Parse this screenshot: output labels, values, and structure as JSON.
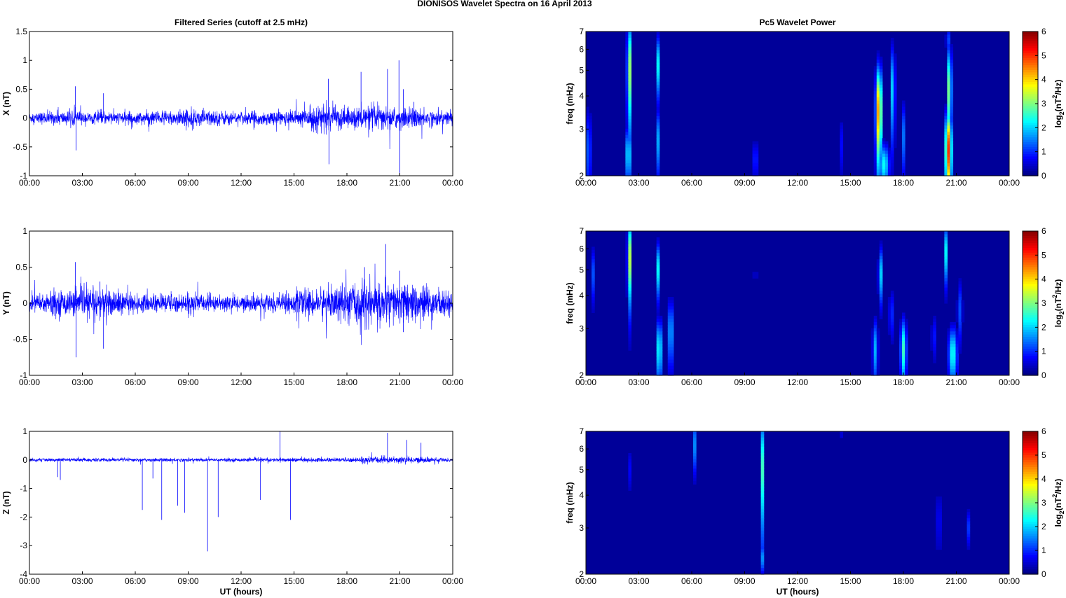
{
  "figure_title": "DIONISOS Wavelet Spectra on 16 April     2013",
  "chart_data": [
    {
      "type": "line",
      "panel": "X",
      "title": "Filtered Series (cutoff at 2.5 mHz)",
      "ylabel": "X (nT)",
      "xlabel": "",
      "xticks": [
        "00:00",
        "03:00",
        "06:00",
        "09:00",
        "12:00",
        "15:00",
        "18:00",
        "21:00",
        "00:00"
      ],
      "yticks": [
        -1,
        -0.5,
        0,
        0.5,
        1,
        1.5
      ],
      "ylim": [
        -1,
        1.5
      ],
      "xlim_hours": [
        0,
        24
      ],
      "noise_amplitude_by_hour": [
        [
          0,
          0.06
        ],
        [
          2,
          0.08
        ],
        [
          3,
          0.07
        ],
        [
          6,
          0.07
        ],
        [
          9,
          0.1
        ],
        [
          12,
          0.07
        ],
        [
          15,
          0.09
        ],
        [
          16.5,
          0.15
        ],
        [
          18,
          0.12
        ],
        [
          20,
          0.14
        ],
        [
          21,
          0.12
        ],
        [
          24,
          0.08
        ]
      ],
      "spikes": [
        [
          2.6,
          0.55
        ],
        [
          2.65,
          -0.56
        ],
        [
          4.2,
          0.43
        ],
        [
          16.95,
          0.68
        ],
        [
          16.98,
          -0.8
        ],
        [
          18.8,
          0.8
        ],
        [
          20.3,
          0.85
        ],
        [
          20.95,
          1.0
        ],
        [
          21.0,
          -0.95
        ],
        [
          21.2,
          0.5
        ],
        [
          21.8,
          0.28
        ]
      ],
      "line_color": "#0000ff"
    },
    {
      "type": "heatmap",
      "panel": "X",
      "title": "Pc5 Wavelet Power",
      "ylabel": "freq (mHz)",
      "xlabel": "",
      "colorbar_label": "log2(nT2/Hz)",
      "xticks": [
        "00:00",
        "03:00",
        "06:00",
        "09:00",
        "12:00",
        "15:00",
        "18:00",
        "21:00",
        "00:00"
      ],
      "yticks": [
        2,
        3,
        4,
        5,
        6,
        7
      ],
      "ylim": [
        2,
        7
      ],
      "clim": [
        0,
        6
      ],
      "colorbar_ticks": [
        0,
        1,
        2,
        3,
        4,
        5,
        6
      ],
      "colormap": "jet",
      "blobs": [
        {
          "t": 0.15,
          "f": 2.5,
          "w": 0.1,
          "h": 1.0,
          "a": 2.0
        },
        {
          "t": 2.45,
          "f": 5.0,
          "w": 0.12,
          "h": 2.4,
          "a": 3.3
        },
        {
          "t": 2.4,
          "f": 2.4,
          "w": 0.15,
          "h": 0.6,
          "a": 2.4
        },
        {
          "t": 4.1,
          "f": 5.2,
          "w": 0.1,
          "h": 1.4,
          "a": 2.3
        },
        {
          "t": 4.1,
          "f": 2.7,
          "w": 0.1,
          "h": 0.8,
          "a": 1.8
        },
        {
          "t": 9.6,
          "f": 2.3,
          "w": 0.18,
          "h": 0.4,
          "a": 1.0
        },
        {
          "t": 14.5,
          "f": 2.6,
          "w": 0.1,
          "h": 0.7,
          "a": 0.8
        },
        {
          "t": 16.6,
          "f": 3.5,
          "w": 0.17,
          "h": 1.5,
          "a": 4.5
        },
        {
          "t": 16.9,
          "f": 2.2,
          "w": 0.3,
          "h": 0.4,
          "a": 2.3
        },
        {
          "t": 17.4,
          "f": 4.2,
          "w": 0.12,
          "h": 1.8,
          "a": 2.2
        },
        {
          "t": 18.0,
          "f": 2.8,
          "w": 0.12,
          "h": 0.9,
          "a": 1.4
        },
        {
          "t": 20.55,
          "f": 2.5,
          "w": 0.18,
          "h": 0.9,
          "a": 5.0
        },
        {
          "t": 20.6,
          "f": 4.2,
          "w": 0.13,
          "h": 1.8,
          "a": 3.2
        },
        {
          "t": 20.5,
          "f": 6.5,
          "w": 0.08,
          "h": 0.8,
          "a": 2.0
        }
      ]
    },
    {
      "type": "line",
      "panel": "Y",
      "title": "",
      "ylabel": "Y (nT)",
      "xlabel": "",
      "xticks": [
        "00:00",
        "03:00",
        "06:00",
        "09:00",
        "12:00",
        "15:00",
        "18:00",
        "21:00",
        "00:00"
      ],
      "yticks": [
        -1,
        -0.5,
        0,
        0.5,
        1
      ],
      "ylim": [
        -1,
        1
      ],
      "xlim_hours": [
        0,
        24
      ],
      "noise_amplitude_by_hour": [
        [
          0,
          0.1
        ],
        [
          2.5,
          0.12
        ],
        [
          4,
          0.15
        ],
        [
          6,
          0.08
        ],
        [
          9,
          0.09
        ],
        [
          12,
          0.07
        ],
        [
          15,
          0.1
        ],
        [
          16.5,
          0.14
        ],
        [
          19,
          0.2
        ],
        [
          21,
          0.18
        ],
        [
          24,
          0.12
        ]
      ],
      "spikes": [
        [
          2.6,
          0.57
        ],
        [
          2.65,
          -0.75
        ],
        [
          4.0,
          0.3
        ],
        [
          4.2,
          -0.63
        ],
        [
          19.0,
          0.5
        ],
        [
          20.2,
          0.82
        ],
        [
          21.0,
          0.45
        ],
        [
          21.2,
          -0.4
        ]
      ],
      "line_color": "#0000ff"
    },
    {
      "type": "heatmap",
      "panel": "Y",
      "title": "",
      "ylabel": "freq (mHz)",
      "xlabel": "",
      "colorbar_label": "log2(nT2/Hz)",
      "xticks": [
        "00:00",
        "03:00",
        "06:00",
        "09:00",
        "12:00",
        "15:00",
        "18:00",
        "21:00",
        "00:00"
      ],
      "yticks": [
        2,
        3,
        4,
        5,
        6,
        7
      ],
      "ylim": [
        2,
        7
      ],
      "clim": [
        0,
        6
      ],
      "colorbar_ticks": [
        0,
        1,
        2,
        3,
        4,
        5,
        6
      ],
      "colormap": "jet",
      "blobs": [
        {
          "t": 0.4,
          "f": 4.8,
          "w": 0.1,
          "h": 1.2,
          "a": 1.2
        },
        {
          "t": 2.45,
          "f": 5.5,
          "w": 0.1,
          "h": 2.0,
          "a": 3.6
        },
        {
          "t": 4.1,
          "f": 5.0,
          "w": 0.1,
          "h": 1.2,
          "a": 2.3
        },
        {
          "t": 4.15,
          "f": 2.5,
          "w": 0.15,
          "h": 0.7,
          "a": 2.6
        },
        {
          "t": 4.8,
          "f": 2.9,
          "w": 0.12,
          "h": 0.9,
          "a": 2.3
        },
        {
          "t": 9.6,
          "f": 4.8,
          "w": 0.08,
          "h": 0.6,
          "a": 1.0
        },
        {
          "t": 16.4,
          "f": 2.5,
          "w": 0.15,
          "h": 0.7,
          "a": 1.8
        },
        {
          "t": 16.7,
          "f": 4.8,
          "w": 0.12,
          "h": 1.2,
          "a": 2.0
        },
        {
          "t": 17.3,
          "f": 3.4,
          "w": 0.12,
          "h": 0.8,
          "a": 1.2
        },
        {
          "t": 18.0,
          "f": 2.5,
          "w": 0.17,
          "h": 0.7,
          "a": 2.6
        },
        {
          "t": 19.7,
          "f": 2.8,
          "w": 0.1,
          "h": 0.6,
          "a": 1.2
        },
        {
          "t": 20.4,
          "f": 5.8,
          "w": 0.1,
          "h": 1.5,
          "a": 2.2
        },
        {
          "t": 20.8,
          "f": 2.4,
          "w": 0.25,
          "h": 0.6,
          "a": 2.4
        },
        {
          "t": 21.2,
          "f": 3.5,
          "w": 0.15,
          "h": 1.0,
          "a": 1.2
        }
      ]
    },
    {
      "type": "line",
      "panel": "Z",
      "title": "",
      "ylabel": "Z (nT)",
      "xlabel": "UT (hours)",
      "xticks": [
        "00:00",
        "03:00",
        "06:00",
        "09:00",
        "12:00",
        "15:00",
        "18:00",
        "21:00",
        "00:00"
      ],
      "yticks": [
        -4,
        -3,
        -2,
        -1,
        0,
        1
      ],
      "ylim": [
        -4,
        1
      ],
      "xlim_hours": [
        0,
        24
      ],
      "noise_amplitude_by_hour": [
        [
          0,
          0.04
        ],
        [
          12,
          0.04
        ],
        [
          18,
          0.05
        ],
        [
          20,
          0.09
        ],
        [
          22,
          0.07
        ],
        [
          24,
          0.04
        ]
      ],
      "spikes": [
        [
          1.6,
          -0.6
        ],
        [
          1.75,
          -0.7
        ],
        [
          6.4,
          -1.75
        ],
        [
          7.0,
          -0.65
        ],
        [
          7.5,
          -2.1
        ],
        [
          8.4,
          -1.6
        ],
        [
          8.8,
          -1.85
        ],
        [
          10.1,
          -3.2
        ],
        [
          10.7,
          -2.0
        ],
        [
          13.1,
          -1.4
        ],
        [
          14.2,
          1.0
        ],
        [
          14.8,
          -2.1
        ],
        [
          20.3,
          0.95
        ],
        [
          21.4,
          0.7
        ],
        [
          22.2,
          0.6
        ]
      ],
      "line_color": "#0000ff"
    },
    {
      "type": "heatmap",
      "panel": "Z",
      "title": "",
      "ylabel": "freq (mHz)",
      "xlabel": "UT (hours)",
      "colorbar_label": "log2(nT2/Hz)",
      "xticks": [
        "00:00",
        "03:00",
        "06:00",
        "09:00",
        "12:00",
        "15:00",
        "18:00",
        "21:00",
        "00:00"
      ],
      "yticks": [
        2,
        3,
        4,
        5,
        6,
        7
      ],
      "ylim": [
        2,
        7
      ],
      "clim": [
        0,
        6
      ],
      "colorbar_ticks": [
        0,
        1,
        2,
        3,
        4,
        5,
        6
      ],
      "colormap": "jet",
      "blobs": [
        {
          "t": 2.5,
          "f": 5.0,
          "w": 0.06,
          "h": 1.0,
          "a": 0.8
        },
        {
          "t": 6.15,
          "f": 6.2,
          "w": 0.06,
          "h": 1.5,
          "a": 1.6
        },
        {
          "t": 7.2,
          "f": 6.8,
          "w": 0.05,
          "h": 0.5,
          "a": 0.8
        },
        {
          "t": 10.0,
          "f": 5.0,
          "w": 0.08,
          "h": 2.6,
          "a": 2.6
        },
        {
          "t": 10.0,
          "f": 2.3,
          "w": 0.08,
          "h": 0.3,
          "a": 1.6
        },
        {
          "t": 20.0,
          "f": 3.2,
          "w": 0.08,
          "h": 1.0,
          "a": 1.6
        },
        {
          "t": 21.7,
          "f": 3.0,
          "w": 0.08,
          "h": 0.5,
          "a": 1.1
        },
        {
          "t": 14.5,
          "f": 6.8,
          "w": 0.05,
          "h": 0.4,
          "a": 0.6
        }
      ]
    }
  ]
}
